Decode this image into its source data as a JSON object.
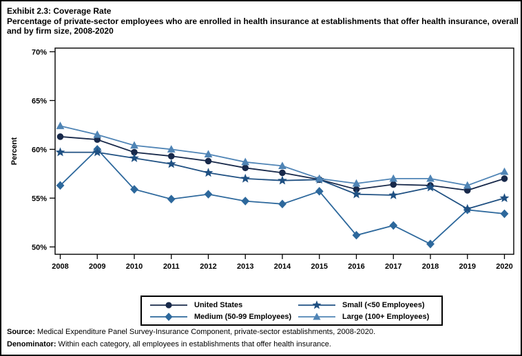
{
  "page": {
    "exhibit_title": "Exhibit 2.3: Coverage Rate",
    "exhibit_subtitle": "Percentage of private-sector employees who are enrolled in health insurance at establishments that offer health insurance, overall and by firm size, 2008-2020"
  },
  "chart_data": {
    "type": "line",
    "x": [
      2008,
      2009,
      2010,
      2011,
      2012,
      2013,
      2014,
      2015,
      2016,
      2017,
      2018,
      2019,
      2020
    ],
    "series": [
      {
        "name": "United States",
        "marker": "circle",
        "color": "#18294a",
        "values": [
          61.3,
          61.0,
          59.7,
          59.3,
          58.8,
          58.1,
          57.6,
          56.9,
          55.9,
          56.4,
          56.3,
          55.8,
          57.0
        ]
      },
      {
        "name": "Small (<50 Employees)",
        "marker": "star",
        "color": "#1f5082",
        "values": [
          59.7,
          59.7,
          59.1,
          58.5,
          57.6,
          57.0,
          56.8,
          56.9,
          55.4,
          55.3,
          56.1,
          53.9,
          55.0
        ]
      },
      {
        "name": "Medium (50-99 Employees)",
        "marker": "diamond",
        "color": "#2d689c",
        "values": [
          56.3,
          60.0,
          55.9,
          54.9,
          55.4,
          54.7,
          54.4,
          55.7,
          51.2,
          52.2,
          50.3,
          53.8,
          53.4
        ]
      },
      {
        "name": "Large (100+ Employees)",
        "marker": "triangle",
        "color": "#4f84b5",
        "values": [
          62.4,
          61.5,
          60.4,
          60.0,
          59.5,
          58.7,
          58.3,
          57.0,
          56.5,
          57.0,
          57.0,
          56.3,
          57.7
        ]
      }
    ],
    "ylabel": "Percent",
    "ylim": [
      50,
      70
    ],
    "yticks": [
      50,
      55,
      60,
      65,
      70
    ],
    "ytick_suffix": "%",
    "grid": false,
    "legend_position": "bottom",
    "draw_order": [
      0,
      2,
      1,
      3
    ]
  },
  "footer": {
    "source_label": "Source:",
    "source_text": " Medical Expenditure Panel Survey-Insurance Component, private-sector establishments, 2008-2020.",
    "denominator_label": "Denominator:",
    "denominator_text": " Within each category, all employees in establishments that offer health insurance."
  }
}
